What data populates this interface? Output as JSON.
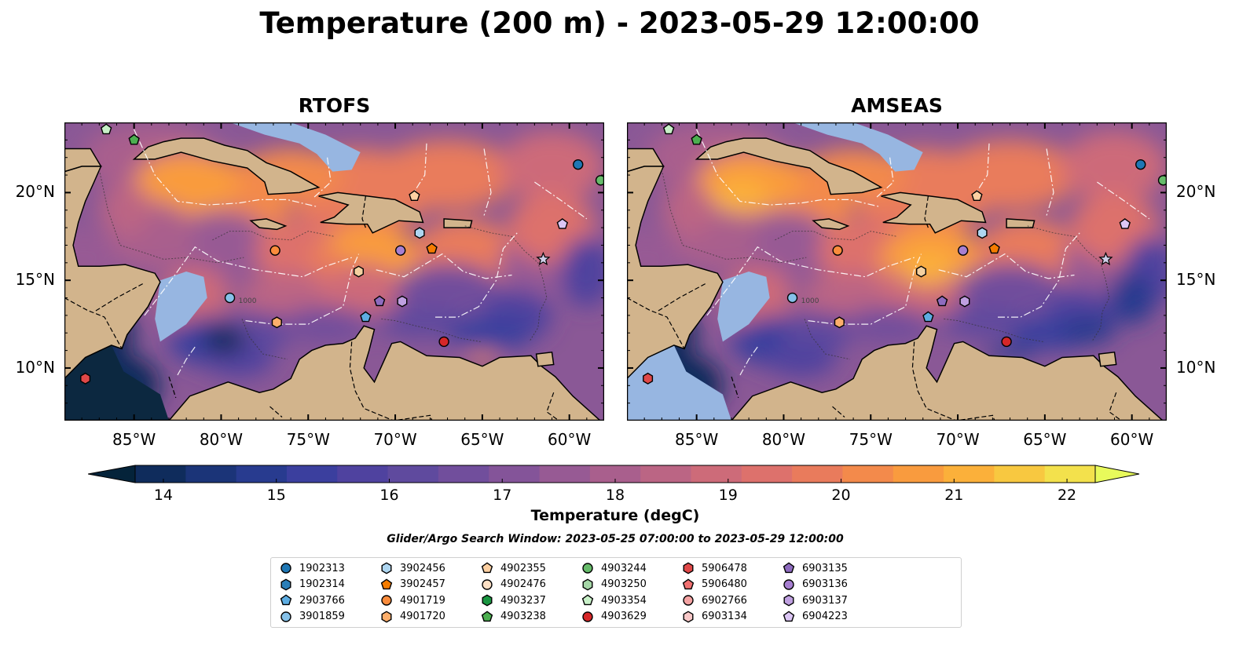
{
  "title": "Temperature (200 m) - 2023-05-29 12:00:00",
  "panels": [
    {
      "title": "RTOFS",
      "y_labels_side": "left"
    },
    {
      "title": "AMSEAS",
      "y_labels_side": "right"
    }
  ],
  "map": {
    "lon_range": [
      -89,
      -58
    ],
    "lat_range": [
      7,
      24
    ],
    "x_ticks": [
      "85°W",
      "80°W",
      "75°W",
      "70°W",
      "65°W",
      "60°W"
    ],
    "x_tick_lons": [
      -85,
      -80,
      -75,
      -70,
      -65,
      -60
    ],
    "y_ticks": [
      "20°N",
      "15°N",
      "10°N"
    ],
    "y_tick_lats": [
      20,
      15,
      10
    ],
    "land_color": "#d2b48c",
    "shelf_color": "#97b6e1",
    "contour_label": "1000"
  },
  "colorbar": {
    "label": "Temperature (degC)",
    "ticks": [
      "14",
      "15",
      "16",
      "17",
      "18",
      "19",
      "20",
      "21",
      "22"
    ],
    "colors": [
      "#04233a",
      "#0f2c5c",
      "#1b3478",
      "#283b8f",
      "#3b3f9e",
      "#4f429f",
      "#5f4a9e",
      "#714e9c",
      "#845499",
      "#975a94",
      "#a95f8d",
      "#bb6584",
      "#cd6b79",
      "#dd716c",
      "#e97b5c",
      "#f38a4b",
      "#f99b3e",
      "#fbb03a",
      "#f8c840",
      "#f3e14c",
      "#e8fa5b"
    ]
  },
  "search_window": "Glider/Argo Search Window: 2023-05-25 07:00:00 to 2023-05-29 12:00:00",
  "floats": [
    {
      "id": "1902313",
      "color": "#1f77b4",
      "shape": "circle",
      "lon": -59.5,
      "lat": 21.6
    },
    {
      "id": "1902314",
      "color": "#2c7fb8",
      "shape": "hexagon",
      "lon": null,
      "lat": null
    },
    {
      "id": "2903766",
      "color": "#5dade2",
      "shape": "pentagon",
      "lon": -71.7,
      "lat": 12.9
    },
    {
      "id": "3901859",
      "color": "#85c1e9",
      "shape": "circle",
      "lon": -79.5,
      "lat": 14.0
    },
    {
      "id": "3902456",
      "color": "#aed6f1",
      "shape": "hexagon",
      "lon": -68.6,
      "lat": 17.7
    },
    {
      "id": "3902457",
      "color": "#f57c00",
      "shape": "pentagon",
      "lon": -67.9,
      "lat": 16.8
    },
    {
      "id": "4901719",
      "color": "#fb8c3c",
      "shape": "circle",
      "lon": -76.9,
      "lat": 16.7
    },
    {
      "id": "4901720",
      "color": "#fdae6b",
      "shape": "hexagon",
      "lon": -76.8,
      "lat": 12.6
    },
    {
      "id": "4902355",
      "color": "#fdd0a2",
      "shape": "pentagon",
      "lon": -68.9,
      "lat": 19.8
    },
    {
      "id": "4902476",
      "color": "#fde0c5",
      "shape": "circle",
      "lon": null,
      "lat": null
    },
    {
      "id": "4903237",
      "color": "#1a9641",
      "shape": "hexagon",
      "lon": null,
      "lat": null
    },
    {
      "id": "4903238",
      "color": "#4caf50",
      "shape": "pentagon",
      "lon": -85.0,
      "lat": 23.0
    },
    {
      "id": "4903244",
      "color": "#66bb6a",
      "shape": "circle",
      "lon": -58.2,
      "lat": 20.7
    },
    {
      "id": "4903250",
      "color": "#a5d6a7",
      "shape": "hexagon",
      "lon": null,
      "lat": null
    },
    {
      "id": "4903354",
      "color": "#c8f0c8",
      "shape": "pentagon",
      "lon": -86.6,
      "lat": 23.6
    },
    {
      "id": "4903629",
      "color": "#d62728",
      "shape": "circle",
      "lon": -67.2,
      "lat": 11.5
    },
    {
      "id": "5906478",
      "color": "#e04848",
      "shape": "hexagon",
      "lon": -87.8,
      "lat": 9.4
    },
    {
      "id": "5906480",
      "color": "#f07070",
      "shape": "pentagon",
      "lon": null,
      "lat": null
    },
    {
      "id": "6902766",
      "color": "#f4a3a3",
      "shape": "circle",
      "lon": null,
      "lat": null
    },
    {
      "id": "6903134",
      "color": "#f8c8c8",
      "shape": "hexagon",
      "lon": null,
      "lat": null
    },
    {
      "id": "6903135",
      "color": "#8e6bbf",
      "shape": "pentagon",
      "lon": null,
      "lat": null
    },
    {
      "id": "6903136",
      "color": "#a77fd1",
      "shape": "circle",
      "lon": -69.7,
      "lat": 16.7
    },
    {
      "id": "6903137",
      "color": "#bfa0e0",
      "shape": "hexagon",
      "lon": -69.6,
      "lat": 13.8
    },
    {
      "id": "6904223",
      "color": "#dcc6f5",
      "shape": "pentagon",
      "lon": -60.4,
      "lat": 18.2
    }
  ],
  "extra_markers": [
    {
      "color": "#f4d0a0",
      "shape": "hexagon",
      "lon": -72.1,
      "lat": 15.5
    },
    {
      "color": "#8e6bbf",
      "shape": "pentagon",
      "lon": -70.9,
      "lat": 13.8
    }
  ]
}
